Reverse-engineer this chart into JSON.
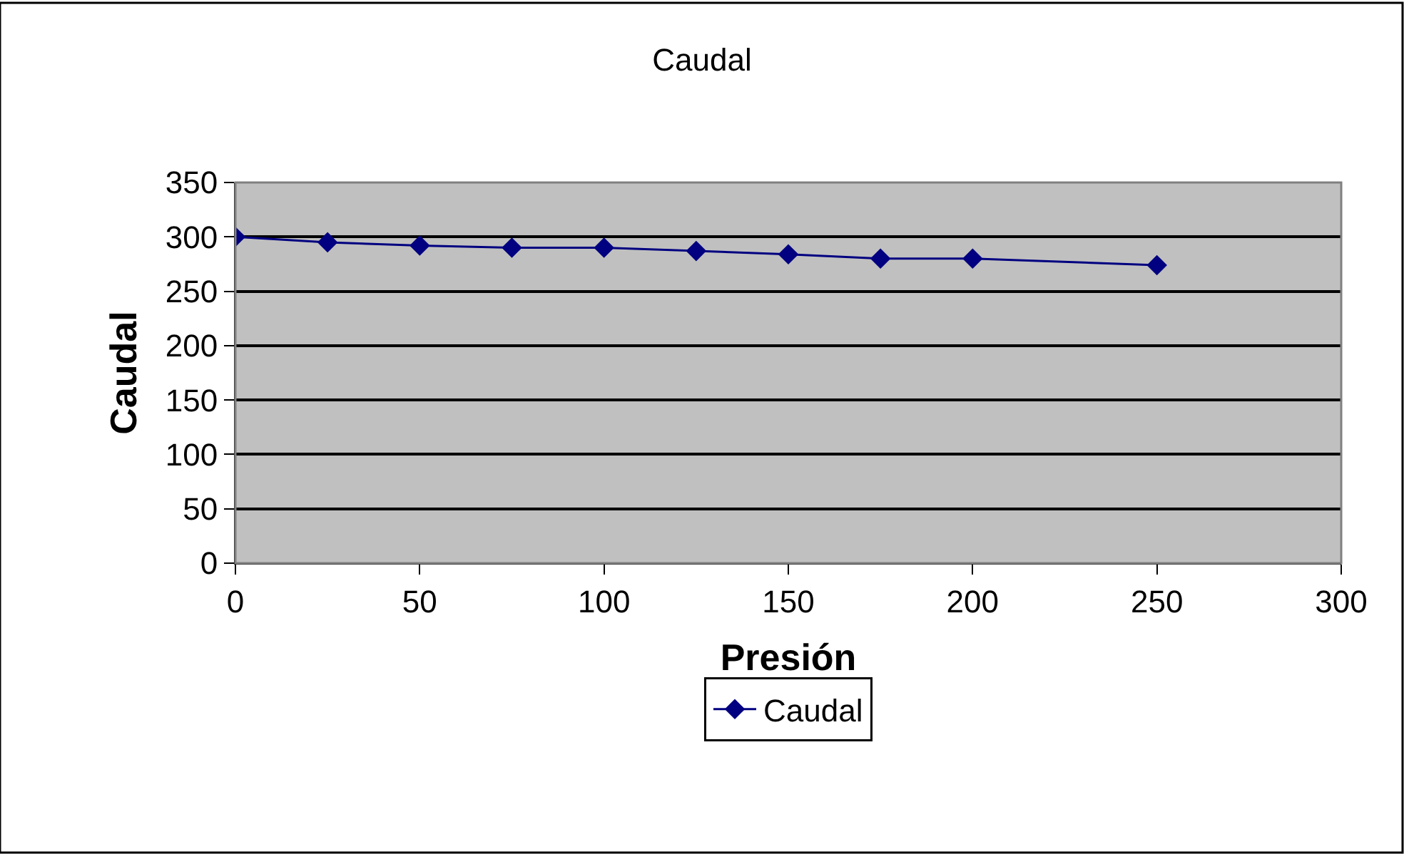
{
  "chart_data": {
    "type": "line",
    "title": "Caudal",
    "xlabel": "Presión",
    "ylabel": "Caudal",
    "x": [
      0,
      25,
      50,
      75,
      100,
      125,
      150,
      175,
      200,
      250
    ],
    "series": [
      {
        "name": "Caudal",
        "color": "#000080",
        "values": [
          300,
          295,
          292,
          290,
          290,
          287,
          284,
          280,
          280,
          274
        ]
      }
    ],
    "xlim": [
      0,
      300
    ],
    "xticks": [
      0,
      50,
      100,
      150,
      200,
      250,
      300
    ],
    "ylim": [
      0,
      350
    ],
    "yticks": [
      0,
      50,
      100,
      150,
      200,
      250,
      300,
      350
    ],
    "grid": "y",
    "legend": "bottom",
    "marker": "diamond",
    "line_style": "solid"
  }
}
